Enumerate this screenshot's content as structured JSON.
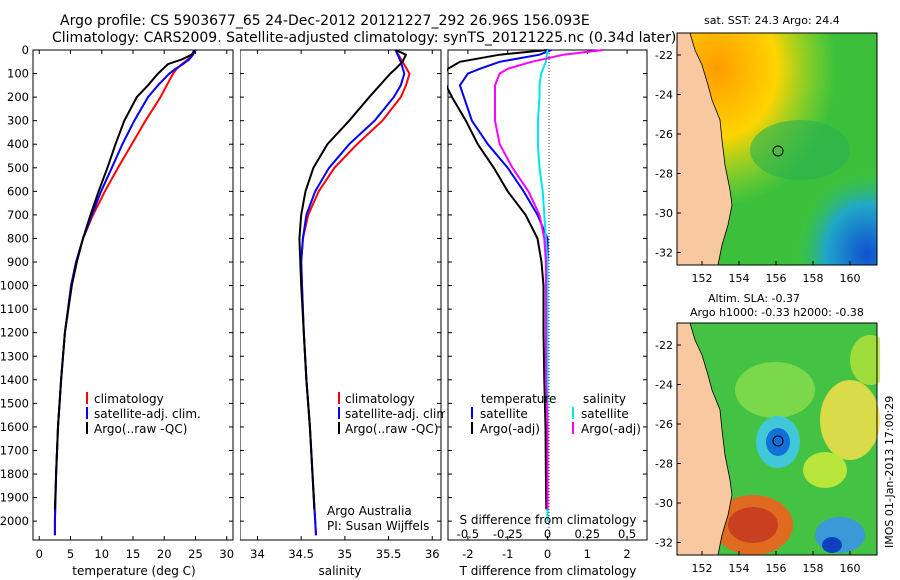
{
  "header": {
    "title_line1": "Argo profile: CS 5903677_65 24-Dec-2012 20121227_292 26.96S 156.093E",
    "title_line2": "Climatology: CARS2009. Satellite-adjusted climatology: synTS_20121225.nc (0.34d later)"
  },
  "chart_data": [
    {
      "id": "temperature",
      "type": "line",
      "xlabel": "temperature (deg C)",
      "ylabel": "depth",
      "xlim": [
        -1,
        31
      ],
      "ylim": [
        2080,
        0
      ],
      "xticks": [
        0,
        5,
        10,
        15,
        20,
        25,
        30
      ],
      "yticks": [
        0,
        100,
        200,
        300,
        400,
        500,
        600,
        700,
        800,
        900,
        1000,
        1100,
        1200,
        1300,
        1400,
        1500,
        1600,
        1700,
        1800,
        1900,
        2000
      ],
      "legend": [
        "climatology",
        "satellite-adj. clim.",
        "Argo(..raw -QC)"
      ],
      "series": [
        {
          "name": "climatology",
          "color": "#ff0000",
          "depth": [
            0,
            20,
            40,
            60,
            80,
            100,
            150,
            200,
            300,
            400,
            500,
            600,
            700,
            800,
            900,
            1000,
            1200,
            1400,
            1600,
            1800,
            2000,
            2060
          ],
          "values": [
            24.8,
            24.5,
            23.8,
            22.8,
            22.0,
            21.4,
            20.4,
            19.4,
            17.0,
            14.8,
            12.6,
            10.5,
            8.6,
            7.0,
            5.9,
            5.1,
            4.1,
            3.5,
            3.0,
            2.7,
            2.5,
            2.5
          ]
        },
        {
          "name": "satellite-adj. clim.",
          "color": "#0000ff",
          "depth": [
            0,
            20,
            40,
            60,
            80,
            100,
            150,
            200,
            300,
            400,
            500,
            600,
            700,
            800,
            900,
            1000,
            1200,
            1400,
            1600,
            1800,
            2000,
            2060
          ],
          "values": [
            25.0,
            24.6,
            24.0,
            23.0,
            21.8,
            20.8,
            19.0,
            17.4,
            15.2,
            13.3,
            11.6,
            9.9,
            8.4,
            7.0,
            5.9,
            5.1,
            4.1,
            3.5,
            3.0,
            2.7,
            2.5,
            2.5
          ]
        },
        {
          "name": "Argo(..raw -QC)",
          "color": "#000000",
          "depth": [
            0,
            20,
            40,
            60,
            80,
            100,
            150,
            200,
            300,
            400,
            500,
            600,
            700,
            800,
            900,
            1000,
            1200,
            1400,
            1600,
            1800,
            1950
          ],
          "values": [
            24.8,
            24.4,
            22.8,
            20.6,
            19.8,
            19.0,
            17.4,
            15.6,
            13.6,
            12.2,
            10.9,
            9.5,
            8.2,
            7.0,
            6.0,
            5.2,
            4.1,
            3.5,
            3.0,
            2.7,
            2.5
          ]
        }
      ]
    },
    {
      "id": "salinity",
      "type": "line",
      "xlabel": "salinity",
      "ylabel": "depth",
      "xlim": [
        33.8,
        36.1
      ],
      "ylim": [
        2080,
        0
      ],
      "xticks": [
        34,
        34.5,
        35,
        35.5,
        36
      ],
      "legend": [
        "climatology",
        "satellite-adj. clim.",
        "Argo(..raw -QC)"
      ],
      "annotation": [
        "Argo Australia",
        "PI: Susan Wijffels"
      ],
      "series": [
        {
          "name": "climatology",
          "color": "#ff0000",
          "depth": [
            0,
            50,
            100,
            150,
            200,
            300,
            400,
            500,
            600,
            700,
            800,
            900,
            1000,
            1200,
            1400,
            1600,
            1800,
            2000,
            2060
          ],
          "values": [
            35.58,
            35.66,
            35.74,
            35.7,
            35.64,
            35.43,
            35.14,
            34.88,
            34.7,
            34.58,
            34.52,
            34.5,
            34.51,
            34.53,
            34.56,
            34.6,
            34.63,
            34.66,
            34.67
          ]
        },
        {
          "name": "satellite-adj. clim.",
          "color": "#0000ff",
          "depth": [
            0,
            50,
            100,
            150,
            200,
            300,
            400,
            500,
            600,
            700,
            800,
            900,
            1000,
            1200,
            1400,
            1600,
            1800,
            2000,
            2060
          ],
          "values": [
            35.58,
            35.64,
            35.68,
            35.64,
            35.56,
            35.34,
            35.05,
            34.82,
            34.66,
            34.56,
            34.52,
            34.5,
            34.51,
            34.53,
            34.56,
            34.6,
            34.63,
            34.66,
            34.67
          ]
        },
        {
          "name": "Argo(..raw -QC)",
          "color": "#000000",
          "depth": [
            0,
            20,
            50,
            80,
            100,
            150,
            200,
            300,
            400,
            500,
            600,
            700,
            800,
            900,
            1000,
            1200,
            1400,
            1600,
            1800,
            1950
          ],
          "values": [
            35.58,
            35.7,
            35.66,
            35.58,
            35.52,
            35.4,
            35.28,
            35.05,
            34.8,
            34.64,
            34.55,
            34.5,
            34.48,
            34.49,
            34.5,
            34.53,
            34.56,
            34.6,
            34.63,
            34.65
          ]
        }
      ]
    },
    {
      "id": "differences",
      "type": "line",
      "xlabel": "T difference from climatology",
      "x2label": "S difference from climatology",
      "xlim": [
        -2.5,
        2.5
      ],
      "ylim": [
        2080,
        0
      ],
      "xticks": [
        -2,
        -1,
        0,
        1,
        2
      ],
      "x2ticks": [
        "-0.5",
        "-0.25",
        "0",
        "0.25",
        "0.5"
      ],
      "legend_left": {
        "title": "temperature",
        "items": [
          "satellite",
          "Argo(-adj)"
        ]
      },
      "legend_right": {
        "title": "salinity",
        "items": [
          "satellite",
          "Argo(-adj)"
        ]
      },
      "series": [
        {
          "name": "temperature satellite",
          "color": "#0000ff",
          "depth": [
            0,
            20,
            50,
            80,
            100,
            150,
            200,
            300,
            400,
            500,
            600,
            700,
            800,
            900,
            1000,
            1200,
            1400,
            1600,
            1800,
            2000
          ],
          "values": [
            0.1,
            -0.2,
            -1.2,
            -1.7,
            -2.0,
            -2.2,
            -2.1,
            -1.9,
            -1.5,
            -1.0,
            -0.6,
            -0.25,
            0,
            0,
            0,
            0,
            0,
            0,
            0,
            0
          ]
        },
        {
          "name": "temperature Argo(-adj)",
          "color": "#000000",
          "depth": [
            0,
            20,
            50,
            80,
            100,
            150,
            200,
            300,
            400,
            500,
            600,
            700,
            800,
            900,
            1000,
            1200,
            1400,
            1600,
            1800,
            1950
          ],
          "values": [
            0.0,
            -1.2,
            -2.2,
            -2.5,
            -2.6,
            -2.55,
            -2.4,
            -2.05,
            -1.75,
            -1.35,
            -1.0,
            -0.55,
            -0.25,
            -0.15,
            -0.1,
            -0.1,
            -0.08,
            -0.05,
            -0.04,
            -0.03
          ]
        },
        {
          "name": "salinity satellite",
          "color": "#00e5ee",
          "depth": [
            0,
            50,
            100,
            150,
            200,
            300,
            400,
            500,
            600,
            700,
            800,
            900,
            1000,
            1200,
            1400,
            1600,
            1800,
            2000
          ],
          "values": [
            0.0,
            -0.01,
            -0.04,
            -0.05,
            -0.05,
            -0.06,
            -0.06,
            -0.05,
            -0.03,
            -0.02,
            -0.01,
            0,
            0,
            0,
            0,
            0,
            0,
            0
          ]
        },
        {
          "name": "salinity Argo(-adj)",
          "color": "#ff00ff",
          "depth": [
            0,
            20,
            50,
            80,
            100,
            150,
            200,
            300,
            400,
            500,
            600,
            700,
            800,
            900,
            1000,
            1200,
            1400,
            1600,
            1800,
            1950
          ],
          "values": [
            0.35,
            0.1,
            -0.1,
            -0.25,
            -0.3,
            -0.33,
            -0.33,
            -0.33,
            -0.3,
            -0.22,
            -0.12,
            -0.05,
            -0.02,
            -0.01,
            -0.01,
            -0.01,
            -0.01,
            0,
            0,
            0
          ]
        }
      ]
    },
    {
      "id": "sst_map",
      "type": "heatmap",
      "title": "sat. SST: 24.3 Argo: 24.4",
      "xticks": [
        "152",
        "154",
        "156",
        "158",
        "160"
      ],
      "yticks": [
        "-22",
        "-24",
        "-26",
        "-28",
        "-30",
        "-32"
      ],
      "argo_position": {
        "lon": 156.093,
        "lat": -26.96
      }
    },
    {
      "id": "sla_map",
      "type": "heatmap",
      "title_line1": "Altim. SLA: -0.37",
      "title_line2": "Argo h1000: -0.33 h2000: -0.38",
      "xticks": [
        "152",
        "154",
        "156",
        "158",
        "160"
      ],
      "yticks": [
        "-22",
        "-24",
        "-26",
        "-28",
        "-30",
        "-32"
      ],
      "argo_position": {
        "lon": 156.093,
        "lat": -26.96
      }
    }
  ],
  "footer": {
    "credit": "IMOS 01-Jan-2013 17:00:29"
  }
}
